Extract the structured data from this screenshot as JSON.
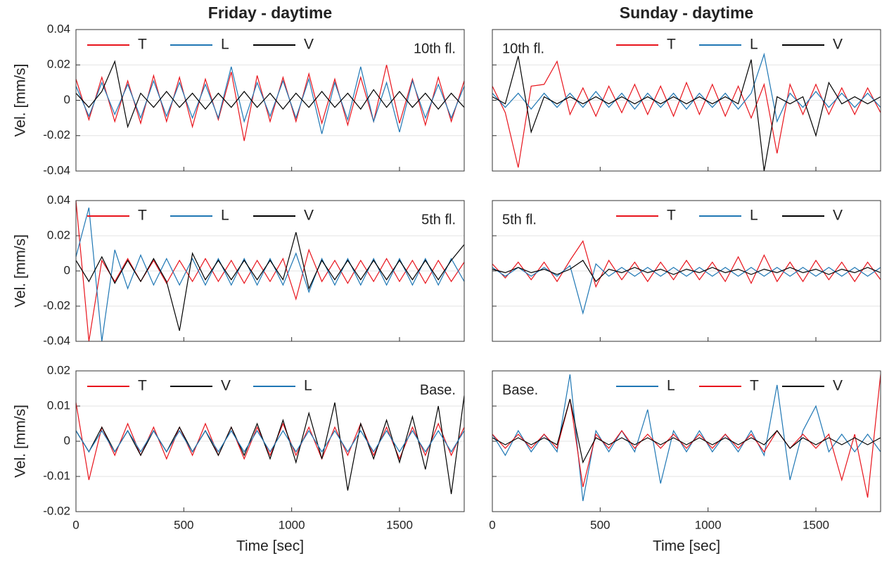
{
  "chart_data": [
    {
      "type": "line",
      "title": "Friday - daytime",
      "annotation": "10th fl.",
      "ylabel": "Vel. [mm/s]",
      "x": [
        0,
        60,
        120,
        180,
        240,
        300,
        360,
        420,
        480,
        540,
        600,
        660,
        720,
        780,
        840,
        900,
        960,
        1020,
        1080,
        1140,
        1200,
        1260,
        1320,
        1380,
        1440,
        1500,
        1560,
        1620,
        1680,
        1740,
        1800
      ],
      "series": [
        {
          "name": "T",
          "color": "#e8141c",
          "values": [
            0.012,
            -0.011,
            0.013,
            -0.012,
            0.011,
            -0.013,
            0.014,
            -0.012,
            0.013,
            -0.015,
            0.012,
            -0.011,
            0.016,
            -0.023,
            0.014,
            -0.012,
            0.013,
            -0.012,
            0.015,
            -0.013,
            0.012,
            -0.014,
            0.013,
            -0.012,
            0.02,
            -0.013,
            0.012,
            -0.014,
            0.013,
            -0.012,
            0.011
          ]
        },
        {
          "name": "L",
          "color": "#1f77b4",
          "values": [
            0.008,
            -0.009,
            0.01,
            -0.008,
            0.009,
            -0.01,
            0.011,
            -0.009,
            0.01,
            -0.01,
            0.009,
            -0.01,
            0.019,
            -0.012,
            0.01,
            -0.009,
            0.011,
            -0.01,
            0.012,
            -0.019,
            0.01,
            -0.011,
            0.019,
            -0.012,
            0.01,
            -0.018,
            0.011,
            -0.01,
            0.009,
            -0.01,
            0.008
          ]
        },
        {
          "name": "V",
          "color": "#000000",
          "values": [
            0.004,
            -0.004,
            0.005,
            0.022,
            -0.015,
            0.004,
            -0.004,
            0.005,
            -0.004,
            0.004,
            -0.005,
            0.004,
            -0.004,
            0.005,
            -0.004,
            0.004,
            -0.005,
            0.004,
            -0.004,
            0.005,
            -0.004,
            0.004,
            -0.005,
            0.006,
            -0.004,
            0.005,
            -0.004,
            0.004,
            -0.005,
            0.004,
            -0.004
          ]
        }
      ],
      "xlim": [
        0,
        1800
      ],
      "xticks": [
        0,
        500,
        1000,
        1500
      ],
      "ylim": [
        -0.04,
        0.04
      ],
      "yticks": [
        -0.04,
        -0.02,
        0,
        0.02,
        0.04
      ],
      "xtick_labels": false,
      "ytick_labels": true,
      "grid": true,
      "legend": "upper left",
      "annotation_loc": "upper right"
    },
    {
      "type": "line",
      "title": "Sunday - daytime",
      "annotation": "10th fl.",
      "x": [
        0,
        60,
        120,
        180,
        240,
        300,
        360,
        420,
        480,
        540,
        600,
        660,
        720,
        780,
        840,
        900,
        960,
        1020,
        1080,
        1140,
        1200,
        1260,
        1320,
        1380,
        1440,
        1500,
        1560,
        1620,
        1680,
        1740,
        1800
      ],
      "series": [
        {
          "name": "T",
          "color": "#e8141c",
          "values": [
            0.008,
            -0.007,
            -0.038,
            0.008,
            0.009,
            0.022,
            -0.008,
            0.007,
            -0.009,
            0.008,
            -0.007,
            0.009,
            -0.008,
            0.008,
            -0.009,
            0.01,
            -0.008,
            0.009,
            -0.009,
            0.008,
            -0.01,
            0.009,
            -0.03,
            0.009,
            -0.008,
            0.009,
            -0.008,
            0.007,
            -0.008,
            0.007,
            -0.007
          ]
        },
        {
          "name": "L",
          "color": "#1f77b4",
          "values": [
            0.004,
            -0.004,
            0.004,
            -0.005,
            0.004,
            -0.004,
            0.004,
            -0.004,
            0.005,
            -0.004,
            0.004,
            -0.005,
            0.004,
            -0.004,
            0.004,
            -0.005,
            0.004,
            -0.004,
            0.004,
            -0.005,
            0.004,
            0.026,
            -0.012,
            0.004,
            -0.004,
            0.005,
            -0.004,
            0.004,
            -0.004,
            0.004,
            -0.004
          ]
        },
        {
          "name": "V",
          "color": "#000000",
          "values": [
            0.002,
            -0.002,
            0.025,
            -0.018,
            0.002,
            -0.002,
            0.002,
            -0.002,
            0.002,
            -0.002,
            0.002,
            -0.002,
            0.002,
            -0.002,
            0.002,
            -0.002,
            0.002,
            -0.002,
            0.002,
            -0.002,
            0.023,
            -0.04,
            0.002,
            -0.002,
            0.002,
            -0.02,
            0.01,
            -0.002,
            0.002,
            -0.002,
            0.002
          ]
        }
      ],
      "xlim": [
        0,
        1800
      ],
      "xticks": [
        0,
        500,
        1000,
        1500
      ],
      "ylim": [
        -0.04,
        0.04
      ],
      "yticks": [
        -0.04,
        -0.02,
        0,
        0.02,
        0.04
      ],
      "xtick_labels": false,
      "ytick_labels": false,
      "grid": true,
      "legend": "upper right",
      "annotation_loc": "upper left"
    },
    {
      "type": "line",
      "annotation": "5th fl.",
      "ylabel": "Vel. [mm/s]",
      "x": [
        0,
        60,
        120,
        180,
        240,
        300,
        360,
        420,
        480,
        540,
        600,
        660,
        720,
        780,
        840,
        900,
        960,
        1020,
        1080,
        1140,
        1200,
        1260,
        1320,
        1380,
        1440,
        1500,
        1560,
        1620,
        1680,
        1740,
        1800
      ],
      "series": [
        {
          "name": "T",
          "color": "#e8141c",
          "values": [
            0.04,
            -0.04,
            0.006,
            -0.006,
            0.007,
            -0.006,
            0.006,
            -0.007,
            0.006,
            -0.006,
            0.007,
            -0.006,
            0.006,
            -0.007,
            0.006,
            -0.006,
            0.007,
            -0.016,
            0.012,
            -0.006,
            0.006,
            -0.007,
            0.006,
            -0.006,
            0.007,
            -0.006,
            0.006,
            -0.007,
            0.006,
            -0.006,
            0.005
          ]
        },
        {
          "name": "L",
          "color": "#1f77b4",
          "values": [
            0.008,
            0.036,
            -0.04,
            0.012,
            -0.01,
            0.009,
            -0.008,
            0.007,
            -0.008,
            0.007,
            -0.008,
            0.007,
            -0.008,
            0.007,
            -0.008,
            0.007,
            -0.008,
            0.01,
            -0.012,
            0.007,
            -0.008,
            0.007,
            -0.008,
            0.007,
            -0.008,
            0.007,
            -0.008,
            0.007,
            -0.008,
            0.007,
            -0.006
          ]
        },
        {
          "name": "V",
          "color": "#000000",
          "values": [
            0.006,
            -0.006,
            0.008,
            -0.007,
            0.006,
            -0.006,
            0.007,
            -0.006,
            -0.034,
            0.01,
            -0.005,
            0.006,
            -0.005,
            0.006,
            -0.005,
            0.006,
            -0.005,
            0.022,
            -0.01,
            0.006,
            -0.005,
            0.006,
            -0.005,
            0.006,
            -0.005,
            0.006,
            -0.005,
            0.006,
            -0.005,
            0.006,
            0.015
          ]
        }
      ],
      "xlim": [
        0,
        1800
      ],
      "xticks": [
        0,
        500,
        1000,
        1500
      ],
      "ylim": [
        -0.04,
        0.04
      ],
      "yticks": [
        -0.04,
        -0.02,
        0,
        0.02,
        0.04
      ],
      "xtick_labels": false,
      "ytick_labels": true,
      "grid": true,
      "legend": "upper left",
      "annotation_loc": "upper right"
    },
    {
      "type": "line",
      "annotation": "5th fl.",
      "x": [
        0,
        60,
        120,
        180,
        240,
        300,
        360,
        420,
        480,
        540,
        600,
        660,
        720,
        780,
        840,
        900,
        960,
        1020,
        1080,
        1140,
        1200,
        1260,
        1320,
        1380,
        1440,
        1500,
        1560,
        1620,
        1680,
        1740,
        1800
      ],
      "series": [
        {
          "name": "T",
          "color": "#e8141c",
          "values": [
            0.004,
            -0.004,
            0.005,
            -0.005,
            0.005,
            -0.006,
            0.006,
            0.017,
            -0.009,
            0.006,
            -0.005,
            0.005,
            -0.006,
            0.005,
            -0.005,
            0.006,
            -0.005,
            0.005,
            -0.006,
            0.008,
            -0.007,
            0.009,
            -0.006,
            0.005,
            -0.006,
            0.006,
            -0.005,
            0.005,
            -0.006,
            0.005,
            -0.005
          ]
        },
        {
          "name": "L",
          "color": "#1f77b4",
          "values": [
            0.002,
            -0.003,
            0.002,
            -0.003,
            0.002,
            -0.003,
            0.003,
            -0.024,
            0.004,
            -0.003,
            0.002,
            -0.003,
            0.002,
            -0.003,
            0.002,
            -0.003,
            0.002,
            -0.003,
            0.002,
            -0.003,
            0.002,
            -0.003,
            0.002,
            -0.003,
            0.002,
            -0.003,
            0.002,
            -0.003,
            0.002,
            -0.003,
            0.002
          ]
        },
        {
          "name": "V",
          "color": "#000000",
          "values": [
            0.001,
            -0.001,
            0.002,
            -0.001,
            0.001,
            -0.002,
            0.001,
            0.006,
            -0.006,
            0.001,
            -0.001,
            0.002,
            -0.001,
            0.001,
            -0.002,
            0.001,
            -0.001,
            0.002,
            -0.001,
            0.001,
            -0.002,
            0.001,
            -0.001,
            0.002,
            -0.001,
            0.001,
            -0.002,
            0.001,
            -0.001,
            0.002,
            -0.001
          ]
        }
      ],
      "xlim": [
        0,
        1800
      ],
      "xticks": [
        0,
        500,
        1000,
        1500
      ],
      "ylim": [
        -0.04,
        0.04
      ],
      "yticks": [
        -0.04,
        -0.02,
        0,
        0.02,
        0.04
      ],
      "xtick_labels": false,
      "ytick_labels": false,
      "grid": true,
      "legend": "upper right",
      "annotation_loc": "upper left"
    },
    {
      "type": "line",
      "annotation": "Base.",
      "ylabel": "Vel. [mm/s]",
      "xlabel": "Time [sec]",
      "x": [
        0,
        60,
        120,
        180,
        240,
        300,
        360,
        420,
        480,
        540,
        600,
        660,
        720,
        780,
        840,
        900,
        960,
        1020,
        1080,
        1140,
        1200,
        1260,
        1320,
        1380,
        1440,
        1500,
        1560,
        1620,
        1680,
        1740,
        1800
      ],
      "series": [
        {
          "name": "T",
          "color": "#e8141c",
          "values": [
            0.011,
            -0.011,
            0.004,
            -0.004,
            0.005,
            -0.004,
            0.004,
            -0.005,
            0.004,
            -0.004,
            0.005,
            -0.004,
            0.004,
            -0.005,
            0.004,
            -0.004,
            0.005,
            -0.004,
            0.004,
            -0.005,
            0.004,
            -0.004,
            0.005,
            -0.004,
            0.004,
            -0.005,
            0.004,
            -0.004,
            0.005,
            -0.004,
            0.004
          ]
        },
        {
          "name": "V",
          "color": "#000000",
          "values": [
            0.003,
            -0.003,
            0.004,
            -0.003,
            0.003,
            -0.004,
            0.003,
            -0.003,
            0.004,
            -0.003,
            0.003,
            -0.004,
            0.004,
            -0.004,
            0.005,
            -0.005,
            0.006,
            -0.006,
            0.008,
            -0.005,
            0.011,
            -0.014,
            0.005,
            -0.005,
            0.006,
            -0.006,
            0.007,
            -0.008,
            0.01,
            -0.015,
            0.013
          ]
        },
        {
          "name": "L",
          "color": "#1f77b4",
          "values": [
            0.003,
            -0.003,
            0.003,
            -0.003,
            0.003,
            -0.003,
            0.003,
            -0.003,
            0.003,
            -0.003,
            0.003,
            -0.003,
            0.003,
            -0.003,
            0.003,
            -0.003,
            0.003,
            -0.003,
            0.003,
            -0.003,
            0.003,
            -0.003,
            0.003,
            -0.003,
            0.003,
            -0.003,
            0.003,
            -0.003,
            0.003,
            -0.003,
            0.003
          ]
        }
      ],
      "xlim": [
        0,
        1800
      ],
      "xticks": [
        0,
        500,
        1000,
        1500
      ],
      "ylim": [
        -0.02,
        0.02
      ],
      "yticks": [
        -0.02,
        -0.01,
        0,
        0.01,
        0.02
      ],
      "xtick_labels": true,
      "ytick_labels": true,
      "grid": true,
      "legend": "upper left",
      "annotation_loc": "upper right"
    },
    {
      "type": "line",
      "annotation": "Base.",
      "xlabel": "Time [sec]",
      "x": [
        0,
        60,
        120,
        180,
        240,
        300,
        360,
        420,
        480,
        540,
        600,
        660,
        720,
        780,
        840,
        900,
        960,
        1020,
        1080,
        1140,
        1200,
        1260,
        1320,
        1380,
        1440,
        1500,
        1560,
        1620,
        1680,
        1740,
        1800
      ],
      "series": [
        {
          "name": "L",
          "color": "#1f77b4",
          "values": [
            0.002,
            -0.004,
            0.003,
            -0.003,
            0.002,
            -0.003,
            0.019,
            -0.017,
            0.003,
            -0.003,
            0.003,
            -0.003,
            0.009,
            -0.012,
            0.003,
            -0.003,
            0.003,
            -0.003,
            0.002,
            -0.003,
            0.003,
            -0.004,
            0.016,
            -0.011,
            0.003,
            0.01,
            -0.003,
            0.002,
            -0.003,
            0.002,
            -0.003
          ]
        },
        {
          "name": "T",
          "color": "#e8141c",
          "values": [
            0.002,
            -0.002,
            0.002,
            -0.002,
            0.002,
            -0.002,
            0.012,
            -0.013,
            0.002,
            -0.002,
            0.003,
            -0.002,
            0.002,
            -0.002,
            0.002,
            -0.002,
            0.002,
            -0.002,
            0.002,
            -0.002,
            0.002,
            -0.003,
            0.003,
            -0.002,
            0.002,
            -0.002,
            0.002,
            -0.011,
            0.002,
            -0.016,
            0.019
          ]
        },
        {
          "name": "V",
          "color": "#000000",
          "values": [
            0.001,
            -0.001,
            0.001,
            -0.001,
            0.001,
            -0.001,
            0.012,
            -0.006,
            0.001,
            -0.001,
            0.001,
            -0.001,
            0.001,
            -0.001,
            0.001,
            -0.001,
            0.001,
            -0.001,
            0.001,
            -0.001,
            0.001,
            -0.001,
            0.003,
            -0.002,
            0.001,
            -0.001,
            0.001,
            -0.001,
            0.001,
            -0.001,
            0.001
          ]
        }
      ],
      "xlim": [
        0,
        1800
      ],
      "xticks": [
        0,
        500,
        1000,
        1500
      ],
      "ylim": [
        -0.02,
        0.02
      ],
      "yticks": [
        -0.02,
        -0.01,
        0,
        0.01,
        0.02
      ],
      "xtick_labels": true,
      "ytick_labels": false,
      "grid": true,
      "legend": "upper right",
      "annotation_loc": "upper left"
    }
  ]
}
